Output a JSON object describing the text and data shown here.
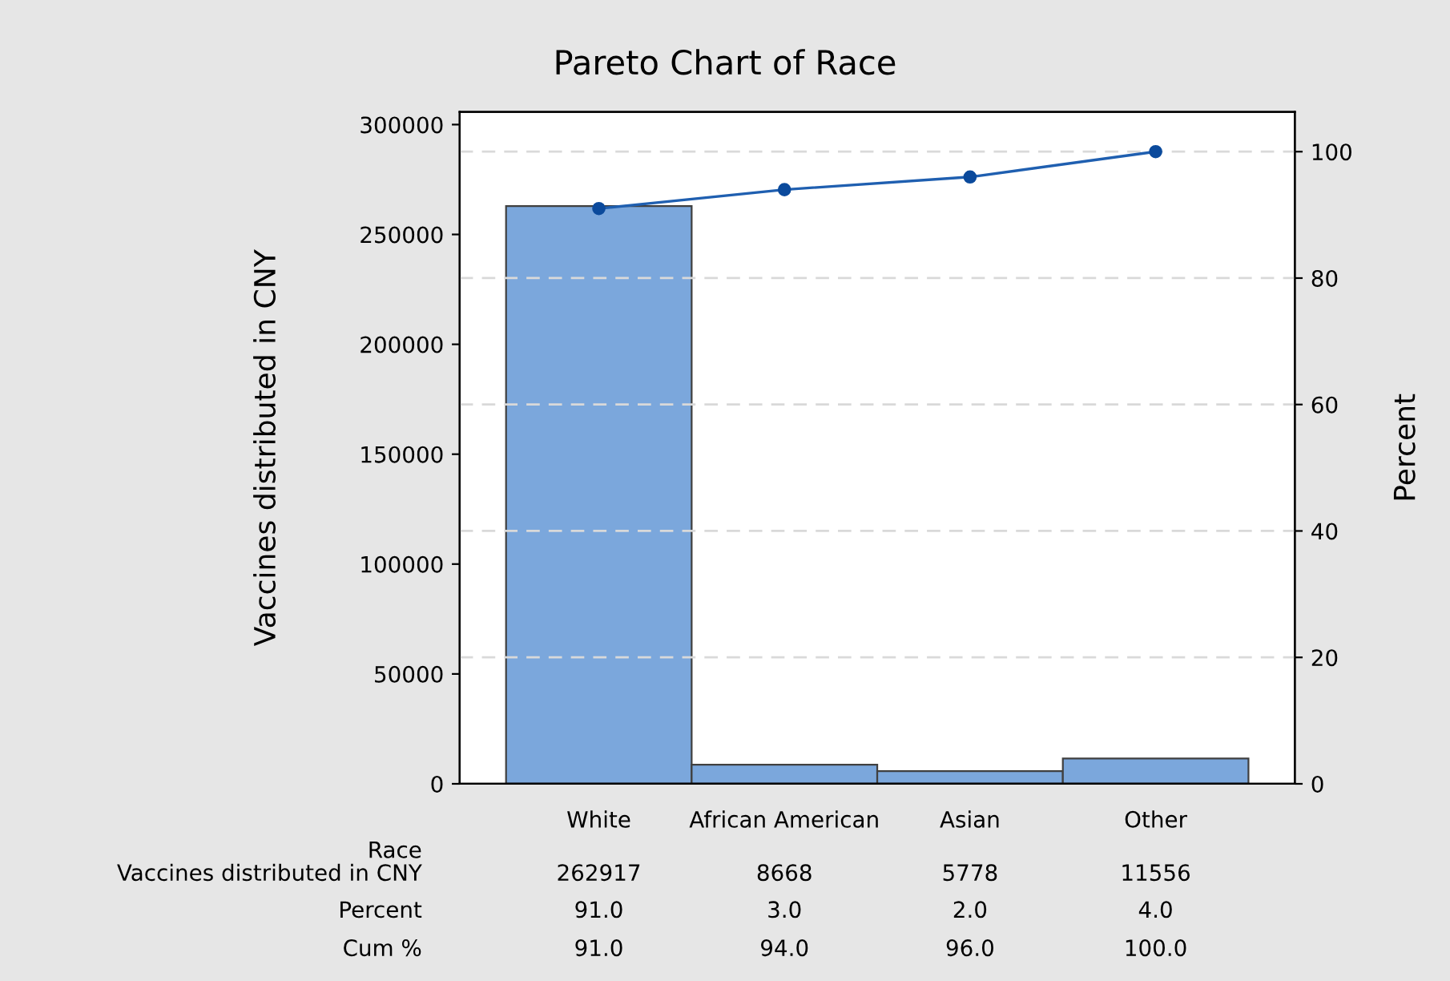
{
  "chart_data": {
    "type": "bar",
    "title": "Pareto Chart of Race",
    "xlabel": "Race",
    "ylabel": "Vaccines distributed in CNY",
    "y2label": "Percent",
    "categories": [
      "White",
      "African American",
      "Asian",
      "Other"
    ],
    "series": [
      {
        "color": "#7ba7dc",
        "values": [
          262917,
          8668,
          5778,
          11556
        ],
        "value_labels": [
          "262917",
          "8668",
          "5778",
          "11556"
        ]
      },
      {
        "type": "line",
        "axis": "y2",
        "color": "#1f5fb0",
        "values": [
          91.0,
          94.0,
          96.0,
          100.0
        ],
        "value_labels": [
          "91.0",
          "94.0",
          "96.0",
          "100.0"
        ],
        "marker": "circle",
        "line_style": "solid"
      }
    ],
    "annotations": [
      "Vaccines distributed in CNY",
      "Percent",
      "Cum %",
      "91.0",
      "3.0",
      "2.0",
      "4.0"
    ],
    "ylim": [
      0,
      305800
    ],
    "yticks": [
      0,
      50000,
      100000,
      150000,
      200000,
      250000,
      300000
    ],
    "y2lim": [
      0,
      106.3
    ],
    "y2ticks": [
      0,
      20,
      40,
      60,
      80,
      100
    ],
    "ref_lines": [
      {
        "axis": "y2",
        "value": 20,
        "color": "#d9d9d9",
        "line_style": "dashed"
      },
      {
        "axis": "y2",
        "value": 40,
        "color": "#d9d9d9",
        "line_style": "dashed"
      },
      {
        "axis": "y2",
        "value": 60,
        "color": "#d9d9d9",
        "line_style": "dashed"
      },
      {
        "axis": "y2",
        "value": 80,
        "color": "#d9d9d9",
        "line_style": "dashed"
      },
      {
        "axis": "y2",
        "value": 100,
        "color": "#d9d9d9",
        "line_style": "dashed"
      }
    ],
    "grid": false,
    "legend": false
  }
}
